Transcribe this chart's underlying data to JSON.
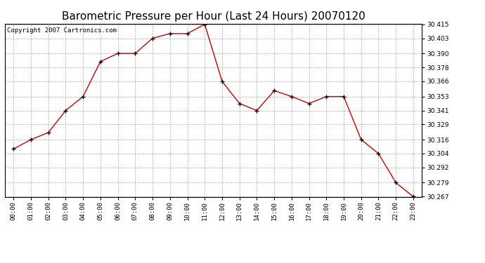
{
  "title": "Barometric Pressure per Hour (Last 24 Hours) 20070120",
  "copyright": "Copyright 2007 Cartronics.com",
  "hours": [
    "00:00",
    "01:00",
    "02:00",
    "03:00",
    "04:00",
    "05:00",
    "06:00",
    "07:00",
    "08:00",
    "09:00",
    "10:00",
    "11:00",
    "12:00",
    "13:00",
    "14:00",
    "15:00",
    "16:00",
    "17:00",
    "18:00",
    "19:00",
    "20:00",
    "21:00",
    "22:00",
    "23:00"
  ],
  "values": [
    30.308,
    30.316,
    30.322,
    30.341,
    30.353,
    30.383,
    30.39,
    30.39,
    30.403,
    30.407,
    30.407,
    30.415,
    30.366,
    30.347,
    30.341,
    30.358,
    30.353,
    30.347,
    30.353,
    30.353,
    30.316,
    30.304,
    30.279,
    30.267
  ],
  "ylim_min": 30.267,
  "ylim_max": 30.415,
  "yticks": [
    30.267,
    30.279,
    30.292,
    30.304,
    30.316,
    30.329,
    30.341,
    30.353,
    30.366,
    30.378,
    30.39,
    30.403,
    30.415
  ],
  "line_color": "#cc0000",
  "marker": "+",
  "marker_color": "#000000",
  "bg_color": "#ffffff",
  "grid_color": "#aaaaaa",
  "title_fontsize": 11,
  "copyright_fontsize": 6.5,
  "tick_fontsize": 6.5
}
